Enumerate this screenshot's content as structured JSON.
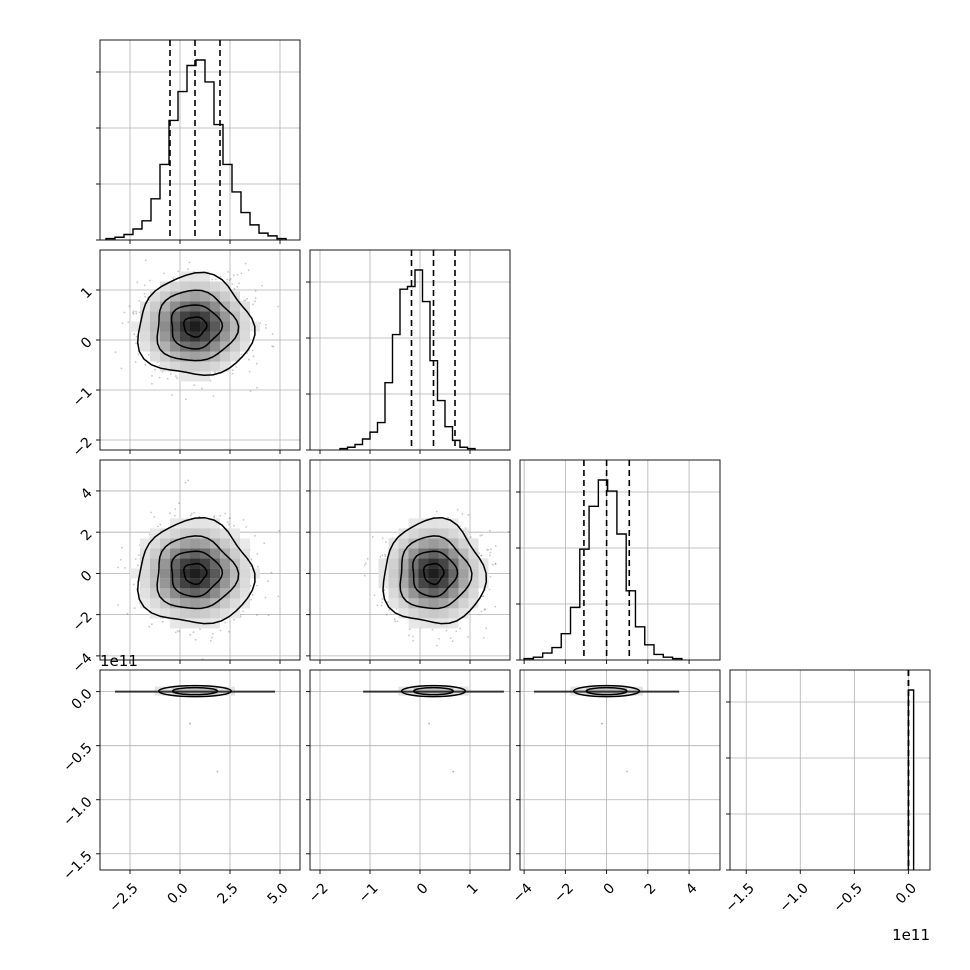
{
  "chart_data": {
    "type": "corner",
    "parameters": 4,
    "grid": true,
    "quantiles": [
      0.16,
      0.5,
      0.84
    ],
    "offset_labels": {
      "panel_3_0_y": "1e11",
      "panel_3_3_x": "1e11"
    },
    "axes": [
      {
        "index": 0,
        "range": [
          -4.0,
          6.0
        ],
        "ticks": [
          -2.5,
          0.0,
          2.5,
          5.0
        ],
        "tick_labels": [
          "−2.5",
          "0.0",
          "2.5",
          "5.0"
        ]
      },
      {
        "index": 1,
        "range": [
          -2.2,
          1.8
        ],
        "ticks": [
          -2,
          -1,
          0,
          1
        ],
        "tick_labels": [
          "−2",
          "−1",
          "0",
          "1"
        ]
      },
      {
        "index": 2,
        "range": [
          -4.2,
          5.5
        ],
        "ticks": [
          -4,
          -2,
          0,
          2,
          4
        ],
        "tick_labels": [
          "−4",
          "−2",
          "0",
          "2",
          "4"
        ]
      },
      {
        "index": 3,
        "range": [
          -1.65,
          0.2
        ],
        "ticks": [
          -1.5,
          -1.0,
          -0.5,
          0.0
        ],
        "tick_labels": [
          "−1.5",
          "−1.0",
          "−0.5",
          "0.0"
        ]
      }
    ],
    "marginals": [
      {
        "param": 0,
        "quantile_values": [
          -0.5,
          0.75,
          2.0
        ],
        "bin_start": -3.7,
        "bin_width": 0.45,
        "counts": [
          1,
          2,
          4,
          8,
          14,
          30,
          55,
          87,
          108,
          127,
          131,
          115,
          84,
          55,
          35,
          20,
          11,
          5,
          3,
          1
        ]
      },
      {
        "param": 1,
        "quantile_values": [
          -0.17,
          0.27,
          0.7
        ],
        "bin_start": -1.6,
        "bin_width": 0.15,
        "counts": [
          1,
          2,
          4,
          8,
          13,
          20,
          49,
          84,
          117,
          119,
          131,
          108,
          65,
          36,
          17,
          7,
          2,
          1
        ]
      },
      {
        "param": 2,
        "quantile_values": [
          -1.1,
          0.0,
          1.1
        ],
        "bin_start": -4.0,
        "bin_width": 0.45,
        "counts": [
          1,
          2,
          5,
          9,
          19,
          38,
          80,
          111,
          130,
          122,
          91,
          50,
          24,
          11,
          4,
          2,
          1
        ]
      },
      {
        "param": 3,
        "quantile_values": [
          0.0,
          0.0,
          0.0
        ],
        "bin_start": 0.0,
        "bin_width": 0.0485,
        "counts": [
          100
        ]
      }
    ],
    "joint": [
      {
        "row": 1,
        "col": 0,
        "kind": "2d-density",
        "center": [
          0.75,
          0.27
        ],
        "spread": [
          1.25,
          0.44
        ]
      },
      {
        "row": 2,
        "col": 0,
        "kind": "2d-density",
        "center": [
          0.75,
          0.0
        ],
        "spread": [
          1.25,
          1.1
        ]
      },
      {
        "row": 2,
        "col": 1,
        "kind": "2d-density",
        "center": [
          0.27,
          0.0
        ],
        "spread": [
          0.44,
          1.1
        ]
      },
      {
        "row": 3,
        "col": 0,
        "kind": "flat",
        "center": [
          0.75,
          0.0
        ],
        "spread": [
          1.25,
          0.0
        ]
      },
      {
        "row": 3,
        "col": 1,
        "kind": "flat",
        "center": [
          0.27,
          0.0
        ],
        "spread": [
          0.44,
          0.0
        ]
      },
      {
        "row": 3,
        "col": 2,
        "kind": "flat",
        "center": [
          0.0,
          0.0
        ],
        "spread": [
          1.1,
          0.0
        ]
      }
    ]
  }
}
